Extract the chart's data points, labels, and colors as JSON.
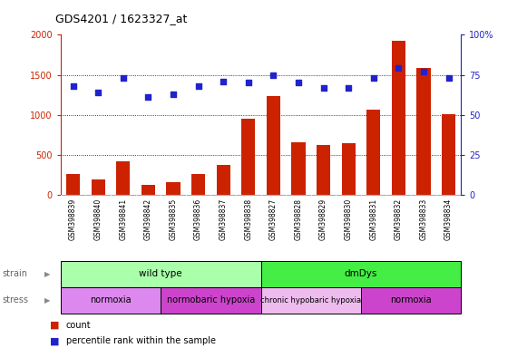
{
  "title": "GDS4201 / 1623327_at",
  "samples": [
    "GSM398839",
    "GSM398840",
    "GSM398841",
    "GSM398842",
    "GSM398835",
    "GSM398836",
    "GSM398837",
    "GSM398838",
    "GSM398827",
    "GSM398828",
    "GSM398829",
    "GSM398830",
    "GSM398831",
    "GSM398832",
    "GSM398833",
    "GSM398834"
  ],
  "counts": [
    260,
    195,
    415,
    130,
    155,
    265,
    370,
    950,
    1240,
    660,
    620,
    645,
    1060,
    1920,
    1580,
    1010
  ],
  "percentile_ranks": [
    68,
    64,
    73,
    61,
    63,
    68,
    71,
    70,
    75,
    70,
    67,
    67,
    73,
    79,
    77,
    73
  ],
  "bar_color": "#cc2200",
  "dot_color": "#2222cc",
  "ylim_left": [
    0,
    2000
  ],
  "ylim_right": [
    0,
    100
  ],
  "yticks_left": [
    0,
    500,
    1000,
    1500,
    2000
  ],
  "yticks_right": [
    0,
    25,
    50,
    75,
    100
  ],
  "ytick_labels_right": [
    "0",
    "25",
    "50",
    "75",
    "100%"
  ],
  "strain_groups": [
    {
      "label": "wild type",
      "start": 0,
      "end": 8,
      "color": "#aaffaa"
    },
    {
      "label": "dmDys",
      "start": 8,
      "end": 16,
      "color": "#44ee44"
    }
  ],
  "stress_groups": [
    {
      "label": "normoxia",
      "start": 0,
      "end": 4,
      "color": "#dd88ee"
    },
    {
      "label": "normobaric hypoxia",
      "start": 4,
      "end": 8,
      "color": "#cc44cc"
    },
    {
      "label": "chronic hypobaric hypoxia",
      "start": 8,
      "end": 12,
      "color": "#eebbee"
    },
    {
      "label": "normoxia",
      "start": 12,
      "end": 16,
      "color": "#cc44cc"
    }
  ],
  "legend_count_label": "count",
  "legend_pct_label": "percentile rank within the sample",
  "strain_label": "strain",
  "stress_label": "stress"
}
